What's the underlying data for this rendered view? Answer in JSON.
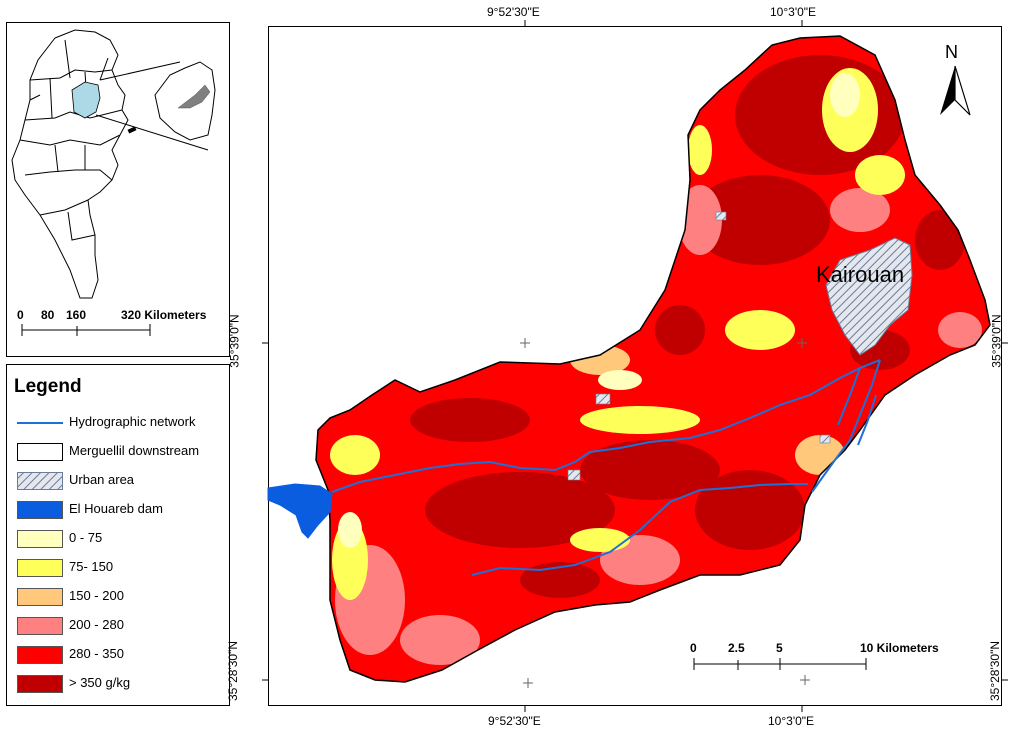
{
  "coords": {
    "top_left": "9°52'30\"E",
    "top_right": "10°3'0\"E",
    "bottom_left": "9°52'30\"E",
    "bottom_right": "10°3'0\"E",
    "left_upper": "35°39'0\"N",
    "left_lower": "35°28'30\"N",
    "right_upper": "35°39'0\"N",
    "right_lower": "35°28'30\"N"
  },
  "inset": {
    "scale_labels": [
      "0",
      "80",
      "160",
      "320 Kilometers"
    ]
  },
  "map": {
    "city_label": "Kairouan",
    "north_label": "N",
    "scale_labels": [
      "0",
      "2.5",
      "5",
      "10 Kilometers"
    ]
  },
  "legend": {
    "title": "Legend",
    "items": [
      {
        "label": "Hydrographic network",
        "kind": "line",
        "color": "#1f6fd6"
      },
      {
        "label": "Merguellil downstream",
        "kind": "outline",
        "color": "#ffffff"
      },
      {
        "label": "Urban area",
        "kind": "hatch",
        "color": "#c9d0dc"
      },
      {
        "label": "El Houareb dam",
        "kind": "fill",
        "color": "#0b5de0"
      },
      {
        "label": "0 - 75",
        "kind": "fill",
        "color": "#ffffbe"
      },
      {
        "label": "75- 150",
        "kind": "fill",
        "color": "#ffff5a"
      },
      {
        "label": "150 - 200",
        "kind": "fill",
        "color": "#ffc87a"
      },
      {
        "label": "200 - 280",
        "kind": "fill",
        "color": "#ff8080"
      },
      {
        "label": "280 - 350",
        "kind": "fill",
        "color": "#ff0000"
      },
      {
        "label": "> 350 g/kg",
        "kind": "fill",
        "color": "#c00000"
      }
    ]
  }
}
